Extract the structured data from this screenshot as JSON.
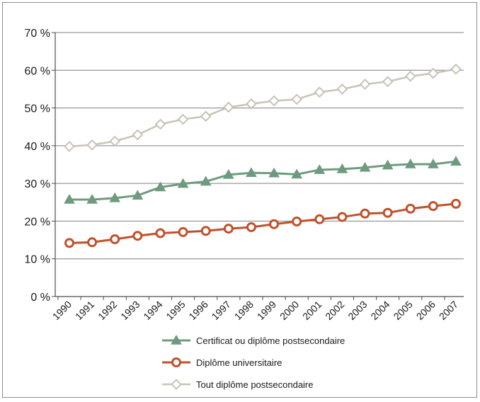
{
  "chart_data": {
    "type": "line",
    "categories": [
      "1990",
      "1991",
      "1992",
      "1993",
      "1994",
      "1995",
      "1996",
      "1997",
      "1998",
      "1999",
      "2000",
      "2001",
      "2002",
      "2003",
      "2004",
      "2005",
      "2006",
      "2007"
    ],
    "yticks": [
      "0 %",
      "10 %",
      "20 %",
      "30 %",
      "40 %",
      "50 %",
      "60 %",
      "70 %"
    ],
    "ylim": [
      0,
      70
    ],
    "grid": true,
    "legend_position": "bottom",
    "series": [
      {
        "name": "Certificat ou diplôme postsecondaire",
        "color": "#6e9b7f",
        "marker": "triangle",
        "values": [
          25.7,
          25.7,
          26.1,
          26.8,
          29.0,
          29.9,
          30.5,
          32.3,
          32.8,
          32.7,
          32.4,
          33.6,
          33.8,
          34.2,
          34.8,
          35.1,
          35.1,
          35.8
        ]
      },
      {
        "name": "Diplôme universitaire",
        "color": "#c0512b",
        "marker": "circle",
        "values": [
          14.2,
          14.4,
          15.2,
          16.1,
          16.8,
          17.1,
          17.4,
          18.0,
          18.4,
          19.2,
          19.9,
          20.5,
          21.1,
          22.0,
          22.2,
          23.3,
          24.0,
          24.6
        ]
      },
      {
        "name": "Tout diplôme postsecondaire",
        "color": "#c9c3b6",
        "marker": "diamond",
        "values": [
          39.8,
          40.2,
          41.2,
          42.9,
          45.7,
          47.0,
          47.8,
          50.2,
          51.1,
          51.9,
          52.3,
          54.2,
          55.0,
          56.3,
          57.0,
          58.4,
          59.2,
          60.3
        ]
      }
    ]
  }
}
